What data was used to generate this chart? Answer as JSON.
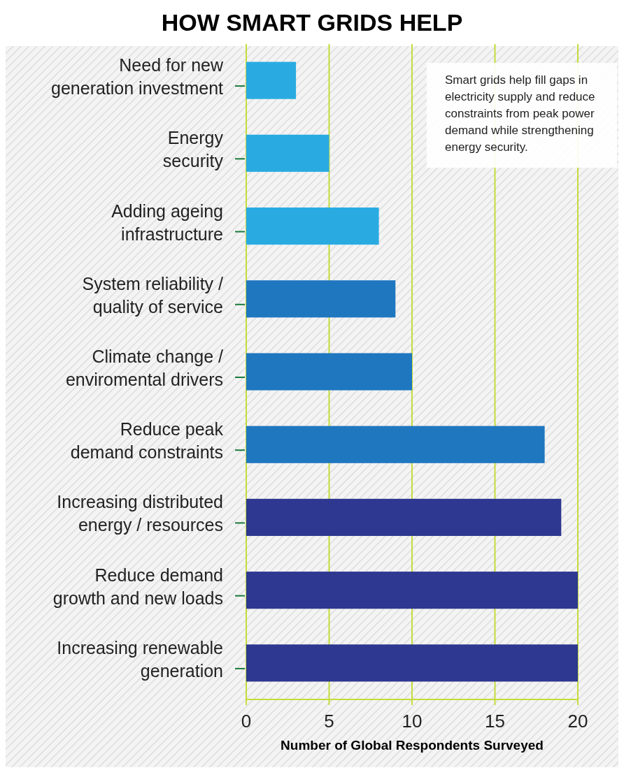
{
  "chart_data": {
    "type": "bar",
    "orientation": "horizontal",
    "title": "HOW SMART GRIDS HELP",
    "categories": [
      "Need for new generation investment",
      "Energy security",
      "Adding ageing infrastructure",
      "System reliability / quality of service",
      "Climate change / enviromental drivers",
      "Reduce peak demand constraints",
      "Increasing distributed energy / resources",
      "Reduce demand growth and new loads",
      "Increasing renewable generation"
    ],
    "values": [
      3,
      5,
      8,
      9,
      10,
      18,
      19,
      20,
      20
    ],
    "colors": [
      "#29abe2",
      "#29abe2",
      "#29abe2",
      "#1f77c0",
      "#1f77c0",
      "#1f77c0",
      "#2e3890",
      "#2e3890",
      "#2e3890"
    ],
    "xlim": [
      0,
      20
    ],
    "xticks": [
      0,
      5,
      10,
      15,
      20
    ],
    "grid": "x",
    "xlabel": "Number of Global Respondents Surveyed",
    "annotations": [
      "Smart grids help fill gaps in electricity supply and reduce constraints from peak power demand while strengthening energy security."
    ]
  }
}
